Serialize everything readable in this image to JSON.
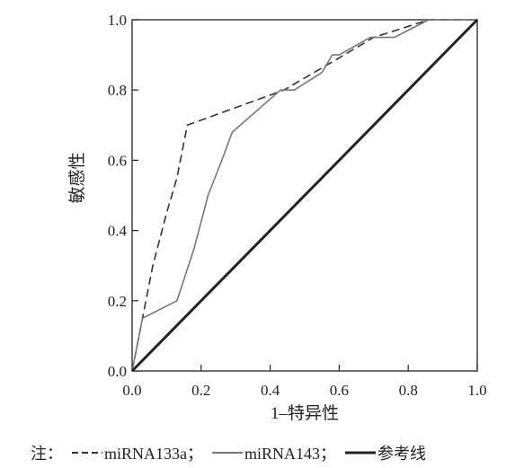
{
  "chart_data": {
    "type": "line",
    "xlabel": "1–特异性",
    "ylabel": "敏感性",
    "xlim": [
      0,
      1
    ],
    "ylim": [
      0,
      1
    ],
    "xticks": [
      "0.0",
      "0.2",
      "0.4",
      "0.6",
      "0.8",
      "1.0"
    ],
    "yticks": [
      "0.0",
      "0.2",
      "0.4",
      "0.6",
      "0.8",
      "1.0"
    ],
    "grid": false,
    "legend_position": "bottom",
    "series": [
      {
        "name": "miRNA133a",
        "style": "dash",
        "color": "#333333",
        "x": [
          0.0,
          0.03,
          0.06,
          0.1,
          0.13,
          0.16,
          0.3,
          0.44,
          0.58,
          0.7,
          0.86,
          1.0
        ],
        "y": [
          0.0,
          0.15,
          0.3,
          0.45,
          0.55,
          0.7,
          0.75,
          0.8,
          0.88,
          0.95,
          1.0,
          1.0
        ]
      },
      {
        "name": "miRNA143",
        "style": "solid",
        "color": "#777777",
        "x": [
          0.0,
          0.03,
          0.13,
          0.18,
          0.22,
          0.26,
          0.29,
          0.43,
          0.47,
          0.55,
          0.58,
          0.6,
          0.69,
          0.76,
          0.86,
          1.0
        ],
        "y": [
          0.0,
          0.15,
          0.2,
          0.35,
          0.5,
          0.6,
          0.68,
          0.8,
          0.8,
          0.85,
          0.9,
          0.9,
          0.95,
          0.95,
          1.0,
          1.0
        ]
      },
      {
        "name": "参考线",
        "style": "thick",
        "color": "#222222",
        "x": [
          0.0,
          1.0
        ],
        "y": [
          0.0,
          1.0
        ]
      }
    ]
  },
  "legend": {
    "prefix": "注：",
    "items": [
      {
        "label": "miRNA133a；",
        "style": "dash"
      },
      {
        "label": "miRNA143；",
        "style": "solid"
      },
      {
        "label": "参考线",
        "style": "thick"
      }
    ]
  }
}
